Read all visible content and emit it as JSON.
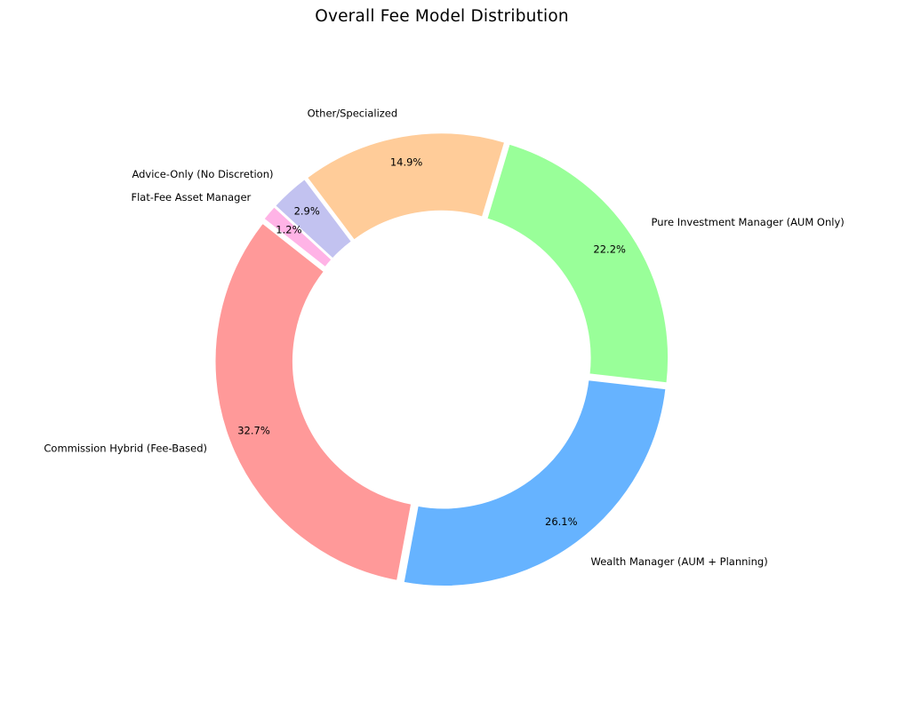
{
  "title": "Overall Fee Model Distribution",
  "colors": {
    "background": "#ffffff",
    "text": "#000000"
  },
  "chart_data": {
    "type": "pie",
    "subtype": "donut",
    "title": "Overall Fee Model Distribution",
    "legend_position": "none",
    "grid": false,
    "units": "percent",
    "start_angle_deg": 141.75,
    "direction": "counterclockwise",
    "segments": [
      {
        "label": "Commission Hybrid (Fee-Based)",
        "value": 32.7,
        "pct_label": "32.7%",
        "color": "#ff9999"
      },
      {
        "label": "Wealth Manager (AUM + Planning)",
        "value": 26.1,
        "pct_label": "26.1%",
        "color": "#66b3ff"
      },
      {
        "label": "Pure Investment Manager (AUM Only)",
        "value": 22.2,
        "pct_label": "22.2%",
        "color": "#99ff99"
      },
      {
        "label": "Other/Specialized",
        "value": 14.9,
        "pct_label": "14.9%",
        "color": "#ffcc99"
      },
      {
        "label": "Advice-Only (No Discretion)",
        "value": 2.9,
        "pct_label": "2.9%",
        "color": "#c2c2f0"
      },
      {
        "label": "Flat-Fee Asset Manager",
        "value": 1.2,
        "pct_label": "1.2%",
        "color": "#ffb3e6"
      }
    ]
  }
}
